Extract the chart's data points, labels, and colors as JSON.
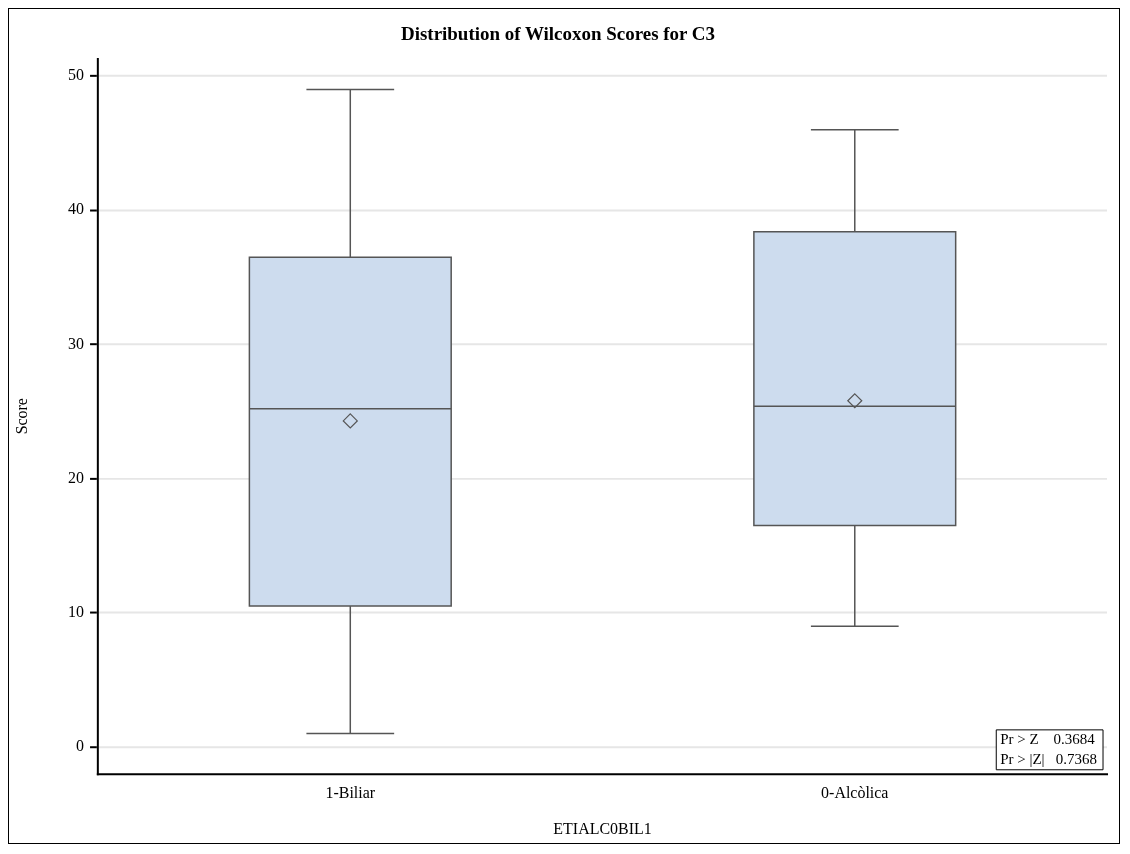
{
  "chart_data": {
    "type": "box",
    "title": "Distribution of Wilcoxon Scores for C3",
    "xlabel": "ETIALC0BIL1",
    "ylabel": "Score",
    "categories": [
      "1-Biliar",
      "0-Alcòlica"
    ],
    "boxes": [
      {
        "low": 1,
        "q1": 10.5,
        "median": 25.2,
        "q3": 36.5,
        "high": 49,
        "mean": 24.3
      },
      {
        "low": 9,
        "q1": 16.5,
        "median": 25.4,
        "q3": 38.4,
        "high": 46,
        "mean": 25.8
      }
    ],
    "color": "#cddcee",
    "ylim": [
      -2,
      51.3
    ],
    "yticks": [
      0,
      10,
      20,
      30,
      40,
      50
    ],
    "grid": "y",
    "marker": "diamond",
    "annotations": [
      "Pr > Z    0.3684",
      "Pr > |Z|   0.7368"
    ]
  }
}
